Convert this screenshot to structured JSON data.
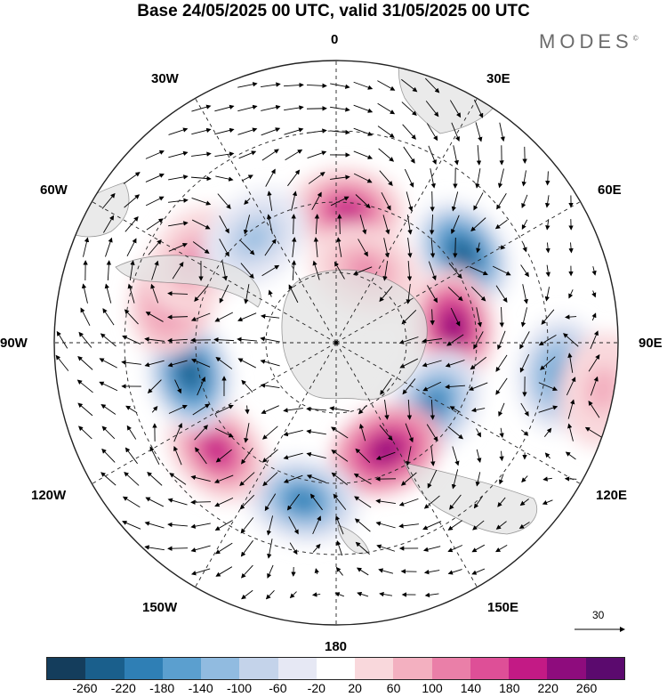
{
  "title": "Base 24/05/2025 00 UTC, valid 31/05/2025 00 UTC",
  "brand": "MODES",
  "brand_mark": "©",
  "longitude_labels": {
    "top": "0",
    "top_right": "30E",
    "right_upper": "60E",
    "right": "90E",
    "right_lower": "120E",
    "bottom_right": "150E",
    "bottom": "180",
    "bottom_left": "150W",
    "left_lower": "120W",
    "left": "90W",
    "left_upper": "60W",
    "top_left": "30W"
  },
  "vector_scale": {
    "label": "30"
  },
  "colorbar": {
    "colors": [
      "#143d5c",
      "#1a5f8c",
      "#2f7fb5",
      "#5b9fcf",
      "#91bbe0",
      "#c4d3ea",
      "#e6e8f4",
      "#ffffff",
      "#f9d8dc",
      "#f3b0c0",
      "#ea7fa8",
      "#de4f97",
      "#c31a85",
      "#8e0c7d",
      "#5b0a6e"
    ],
    "ticks": [
      "-260",
      "-220",
      "-180",
      "-140",
      "-100",
      "-60",
      "-20",
      "20",
      "60",
      "100",
      "140",
      "180",
      "220",
      "260"
    ]
  },
  "anomaly_cells": [
    {
      "lon": 5,
      "r": 0.47,
      "value": 200
    },
    {
      "lon": 55,
      "r": 0.55,
      "value": -230
    },
    {
      "lon": 82,
      "r": 0.42,
      "value": 240
    },
    {
      "lon": 98,
      "r": 0.8,
      "value": -160
    },
    {
      "lon": 122,
      "r": 0.41,
      "value": -180
    },
    {
      "lon": 155,
      "r": 0.42,
      "value": 260
    },
    {
      "lon": 192,
      "r": 0.57,
      "value": -190
    },
    {
      "lon": 228,
      "r": 0.57,
      "value": 210
    },
    {
      "lon": 258,
      "r": 0.53,
      "value": -230
    },
    {
      "lon": 285,
      "r": 0.6,
      "value": 140
    },
    {
      "lon": 300,
      "r": 0.58,
      "value": 120
    },
    {
      "lon": 322,
      "r": 0.47,
      "value": -100
    },
    {
      "lon": 22,
      "r": 0.28,
      "value": 110
    },
    {
      "lon": 100,
      "r": 0.96,
      "value": 80
    }
  ]
}
